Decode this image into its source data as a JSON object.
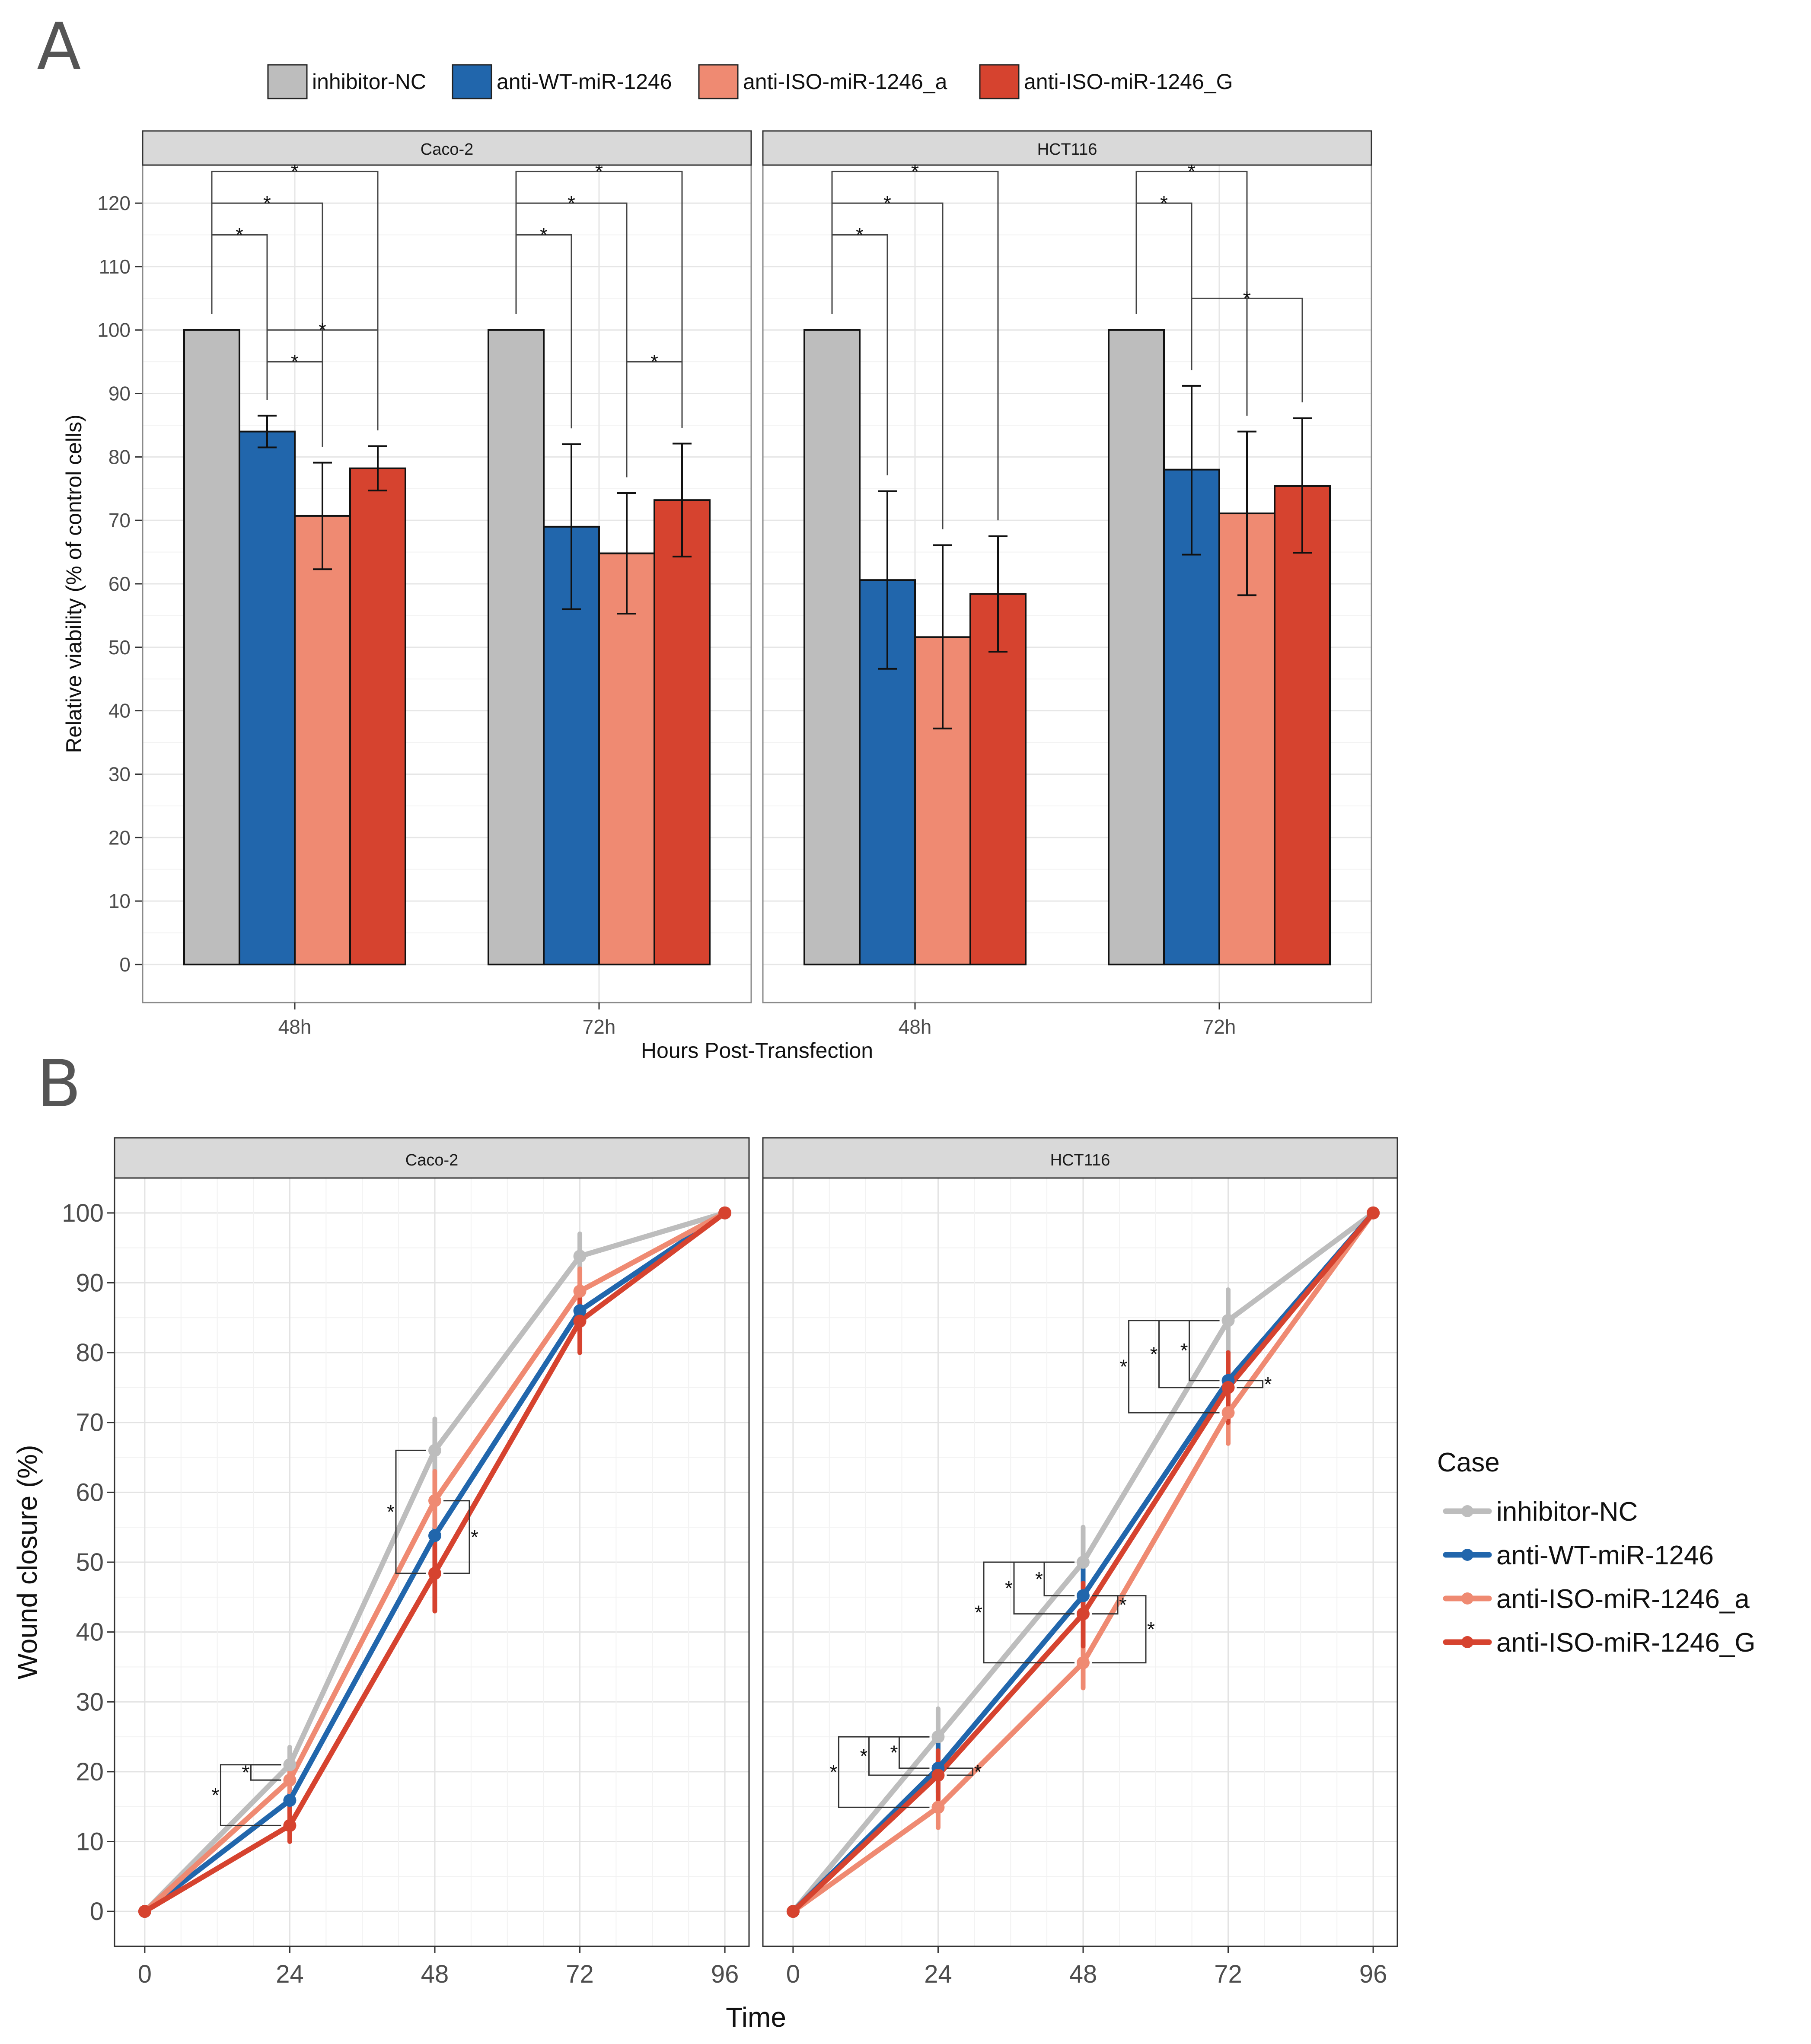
{
  "figure": {
    "panel_a_label": "A",
    "panel_b_label": "B",
    "colors": {
      "inhibitor-NC": "#bdbdbd",
      "anti-WT-miR-1246": "#2166ac",
      "anti-ISO-miR-1246_a": "#ef8a72",
      "anti-ISO-miR-1246_G": "#d6432f"
    },
    "significance_symbol": "*"
  },
  "chart_data": [
    {
      "type": "bar",
      "id": "A",
      "title": "",
      "xlabel": "Hours Post-Transfection",
      "ylabel": "Relative viability (% of control cells)",
      "ylim": [
        -6,
        126
      ],
      "yticks": [
        0,
        10,
        20,
        30,
        40,
        50,
        60,
        70,
        80,
        90,
        100,
        110,
        120
      ],
      "grid": true,
      "legend_position": "top",
      "legend_entries": [
        "inhibitor-NC",
        "anti-WT-miR-1246",
        "anti-ISO-miR-1246_a",
        "anti-ISO-miR-1246_G"
      ],
      "facets": [
        {
          "label": "Caco-2",
          "categories": [
            "48h",
            "72h"
          ],
          "series": [
            {
              "name": "inhibitor-NC",
              "values": [
                100,
                100
              ],
              "errors": [
                null,
                null
              ]
            },
            {
              "name": "anti-WT-miR-1246",
              "values": [
                84.0,
                69.0
              ],
              "errors": [
                [
                  81.5,
                  86.5
                ],
                [
                  56.0,
                  82.0
                ]
              ]
            },
            {
              "name": "anti-ISO-miR-1246_a",
              "values": [
                70.7,
                64.8
              ],
              "errors": [
                [
                  62.3,
                  79.1
                ],
                [
                  55.3,
                  74.3
                ]
              ]
            },
            {
              "name": "anti-ISO-miR-1246_G",
              "values": [
                78.2,
                73.2
              ],
              "errors": [
                [
                  74.7,
                  81.7
                ],
                [
                  64.3,
                  82.1
                ]
              ]
            }
          ],
          "significance": [
            {
              "category": "48h",
              "from": "inhibitor-NC",
              "to": "anti-WT-miR-1246",
              "label": "*",
              "level": 115
            },
            {
              "category": "48h",
              "from": "inhibitor-NC",
              "to": "anti-ISO-miR-1246_a",
              "label": "*",
              "level": 120
            },
            {
              "category": "48h",
              "from": "inhibitor-NC",
              "to": "anti-ISO-miR-1246_G",
              "label": "*",
              "level": 125
            },
            {
              "category": "48h",
              "from": "anti-WT-miR-1246",
              "to": "anti-ISO-miR-1246_a",
              "label": "*",
              "level": 95
            },
            {
              "category": "48h",
              "from": "anti-WT-miR-1246",
              "to": "anti-ISO-miR-1246_G",
              "label": "*",
              "level": 100
            },
            {
              "category": "72h",
              "from": "inhibitor-NC",
              "to": "anti-WT-miR-1246",
              "label": "*",
              "level": 115
            },
            {
              "category": "72h",
              "from": "inhibitor-NC",
              "to": "anti-ISO-miR-1246_a",
              "label": "*",
              "level": 120
            },
            {
              "category": "72h",
              "from": "inhibitor-NC",
              "to": "anti-ISO-miR-1246_G",
              "label": "*",
              "level": 125
            },
            {
              "category": "72h",
              "from": "anti-ISO-miR-1246_a",
              "to": "anti-ISO-miR-1246_G",
              "label": "*",
              "level": 95
            }
          ]
        },
        {
          "label": "HCT116",
          "categories": [
            "48h",
            "72h"
          ],
          "series": [
            {
              "name": "inhibitor-NC",
              "values": [
                100,
                100
              ],
              "errors": [
                null,
                null
              ]
            },
            {
              "name": "anti-WT-miR-1246",
              "values": [
                60.6,
                78.0
              ],
              "errors": [
                [
                  46.6,
                  74.6
                ],
                [
                  64.6,
                  91.2
                ]
              ]
            },
            {
              "name": "anti-ISO-miR-1246_a",
              "values": [
                51.6,
                71.1
              ],
              "errors": [
                [
                  37.2,
                  66.1
                ],
                [
                  58.2,
                  84.0
                ]
              ]
            },
            {
              "name": "anti-ISO-miR-1246_G",
              "values": [
                58.4,
                75.4
              ],
              "errors": [
                [
                  49.3,
                  67.5
                ],
                [
                  64.9,
                  86.1
                ]
              ]
            }
          ],
          "significance": [
            {
              "category": "48h",
              "from": "inhibitor-NC",
              "to": "anti-WT-miR-1246",
              "label": "*",
              "level": 115
            },
            {
              "category": "48h",
              "from": "inhibitor-NC",
              "to": "anti-ISO-miR-1246_a",
              "label": "*",
              "level": 120
            },
            {
              "category": "48h",
              "from": "inhibitor-NC",
              "to": "anti-ISO-miR-1246_G",
              "label": "*",
              "level": 125
            },
            {
              "category": "72h",
              "from": "inhibitor-NC",
              "to": "anti-WT-miR-1246",
              "label": "*",
              "level": 120
            },
            {
              "category": "72h",
              "from": "inhibitor-NC",
              "to": "anti-ISO-miR-1246_a",
              "label": "*",
              "level": 125
            },
            {
              "category": "72h",
              "from": "anti-WT-miR-1246",
              "to": "anti-ISO-miR-1246_G",
              "label": "*",
              "level": 105
            }
          ]
        }
      ]
    },
    {
      "type": "line",
      "id": "B",
      "title": "",
      "xlabel": "Time",
      "ylabel": "Wound closure (%)",
      "x": [
        0,
        24,
        48,
        72,
        96
      ],
      "xlim": [
        -5,
        100
      ],
      "ylim": [
        -5,
        105
      ],
      "yticks": [
        0,
        10,
        20,
        30,
        40,
        50,
        60,
        70,
        80,
        90,
        100
      ],
      "grid": true,
      "legend_position": "right",
      "legend_title": "Case",
      "legend_entries": [
        "inhibitor-NC",
        "anti-WT-miR-1246",
        "anti-ISO-miR-1246_a",
        "anti-ISO-miR-1246_G"
      ],
      "facets": [
        {
          "label": "Caco-2",
          "series": [
            {
              "name": "inhibitor-NC",
              "values": [
                0,
                21.0,
                66.0,
                93.8,
                100
              ],
              "errors": [
                null,
                [
                  19,
                  23.5
                ],
                [
                  62,
                  70.5
                ],
                [
                  90,
                  97
                ],
                null
              ]
            },
            {
              "name": "anti-WT-miR-1246",
              "values": [
                0,
                15.9,
                53.8,
                86.0,
                100
              ],
              "errors": [
                null,
                [
                  14,
                  18
                ],
                [
                  50,
                  57
                ],
                [
                  83,
                  89
                ],
                null
              ]
            },
            {
              "name": "anti-ISO-miR-1246_a",
              "values": [
                0,
                18.8,
                58.8,
                88.8,
                100
              ],
              "errors": [
                null,
                [
                  17,
                  21
                ],
                [
                  55,
                  63
                ],
                [
                  86,
                  92
                ],
                null
              ]
            },
            {
              "name": "anti-ISO-miR-1246_G",
              "values": [
                0,
                12.3,
                48.4,
                84.5,
                100
              ],
              "errors": [
                null,
                [
                  10,
                  15
                ],
                [
                  43,
                  54
                ],
                [
                  80,
                  89
                ],
                null
              ]
            }
          ],
          "significance": [
            {
              "x": 24,
              "pairs": [
                {
                  "from": 21.0,
                  "to": 18.8,
                  "label": "*"
                },
                {
                  "from": 21.0,
                  "to": 12.3,
                  "label": "*"
                }
              ]
            },
            {
              "x": 48,
              "pairs": [
                {
                  "from": 66.0,
                  "to": 48.4,
                  "label": "*"
                },
                {
                  "from": 58.8,
                  "to": 48.4,
                  "label": "*",
                  "side": "right"
                }
              ]
            }
          ]
        },
        {
          "label": "HCT116",
          "series": [
            {
              "name": "inhibitor-NC",
              "values": [
                0,
                25.0,
                50.0,
                84.6,
                100
              ],
              "errors": [
                null,
                [
                  21,
                  29
                ],
                [
                  46,
                  55
                ],
                [
                  80,
                  89
                ],
                null
              ]
            },
            {
              "name": "anti-WT-miR-1246",
              "values": [
                0,
                20.5,
                45.2,
                76.0,
                100
              ],
              "errors": [
                null,
                [
                  17,
                  24
                ],
                [
                  41,
                  49
                ],
                [
                  72,
                  80
                ],
                null
              ]
            },
            {
              "name": "anti-ISO-miR-1246_a",
              "values": [
                0,
                14.9,
                35.6,
                71.4,
                100
              ],
              "errors": [
                null,
                [
                  12,
                  18
                ],
                [
                  32,
                  40
                ],
                [
                  67,
                  76
                ],
                null
              ]
            },
            {
              "name": "anti-ISO-miR-1246_G",
              "values": [
                0,
                19.5,
                42.6,
                75.0,
                100
              ],
              "errors": [
                null,
                [
                  16,
                  23
                ],
                [
                  38,
                  47
                ],
                [
                  70,
                  80
                ],
                null
              ]
            }
          ],
          "significance": [
            {
              "x": 24,
              "pairs": [
                {
                  "from": 25.0,
                  "to": 20.5,
                  "label": "*"
                },
                {
                  "from": 25.0,
                  "to": 19.5,
                  "label": "*"
                },
                {
                  "from": 25.0,
                  "to": 14.9,
                  "label": "*"
                },
                {
                  "from": 20.5,
                  "to": 19.5,
                  "label": "*",
                  "side": "right"
                }
              ]
            },
            {
              "x": 48,
              "pairs": [
                {
                  "from": 50.0,
                  "to": 45.2,
                  "label": "*"
                },
                {
                  "from": 50.0,
                  "to": 42.6,
                  "label": "*"
                },
                {
                  "from": 50.0,
                  "to": 35.6,
                  "label": "*"
                },
                {
                  "from": 45.2,
                  "to": 42.6,
                  "label": "*",
                  "side": "right"
                },
                {
                  "from": 45.2,
                  "to": 35.6,
                  "label": "*",
                  "side": "right"
                }
              ]
            },
            {
              "x": 72,
              "pairs": [
                {
                  "from": 84.6,
                  "to": 76.0,
                  "label": "*"
                },
                {
                  "from": 84.6,
                  "to": 75.0,
                  "label": "*"
                },
                {
                  "from": 84.6,
                  "to": 71.4,
                  "label": "*"
                },
                {
                  "from": 76.0,
                  "to": 75.0,
                  "label": "*",
                  "side": "right"
                }
              ]
            }
          ]
        }
      ]
    }
  ]
}
